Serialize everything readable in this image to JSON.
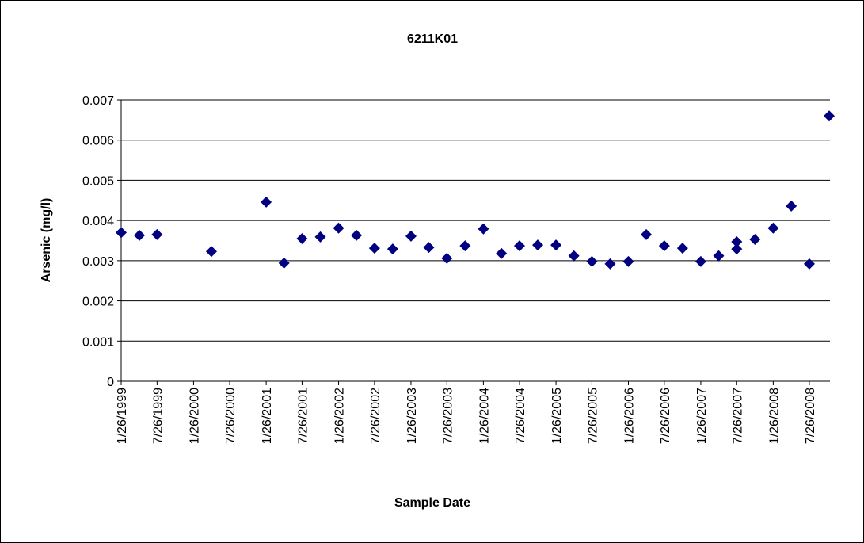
{
  "chart_data": {
    "type": "scatter",
    "title": "6211K01",
    "x_label": "Sample Date",
    "y_label": "Arsenic (mg/l)",
    "color": "#000080",
    "grid": true,
    "xlim": [
      "1999-01-26",
      "2008-11-07"
    ],
    "xticks": [
      {
        "value": "1999-01-26",
        "label": "1/26/1999"
      },
      {
        "value": "1999-07-26",
        "label": "7/26/1999"
      },
      {
        "value": "2000-01-26",
        "label": "1/26/2000"
      },
      {
        "value": "2000-07-26",
        "label": "7/26/2000"
      },
      {
        "value": "2001-01-26",
        "label": "1/26/2001"
      },
      {
        "value": "2001-07-26",
        "label": "7/26/2001"
      },
      {
        "value": "2002-01-26",
        "label": "1/26/2002"
      },
      {
        "value": "2002-07-26",
        "label": "7/26/2002"
      },
      {
        "value": "2003-01-26",
        "label": "1/26/2003"
      },
      {
        "value": "2003-07-26",
        "label": "7/26/2003"
      },
      {
        "value": "2004-01-26",
        "label": "1/26/2004"
      },
      {
        "value": "2004-07-26",
        "label": "7/26/2004"
      },
      {
        "value": "2005-01-26",
        "label": "1/26/2005"
      },
      {
        "value": "2005-07-26",
        "label": "7/26/2005"
      },
      {
        "value": "2006-01-26",
        "label": "1/26/2006"
      },
      {
        "value": "2006-07-26",
        "label": "7/26/2006"
      },
      {
        "value": "2007-01-26",
        "label": "1/26/2007"
      },
      {
        "value": "2007-07-26",
        "label": "7/26/2007"
      },
      {
        "value": "2008-01-26",
        "label": "1/26/2008"
      },
      {
        "value": "2008-07-26",
        "label": "7/26/2008"
      }
    ],
    "ylim": [
      0,
      0.007
    ],
    "yticks": [
      0,
      0.001,
      0.002,
      0.003,
      0.004,
      0.005,
      0.006,
      0.007
    ],
    "x": [
      "1999-01-26",
      "1999-04-28",
      "1999-07-26",
      "2000-04-25",
      "2001-01-26",
      "2001-04-26",
      "2001-07-26",
      "2001-10-26",
      "2002-01-26",
      "2002-04-26",
      "2002-07-26",
      "2002-10-26",
      "2003-01-26",
      "2003-04-26",
      "2003-07-26",
      "2003-10-26",
      "2004-01-26",
      "2004-04-26",
      "2004-07-26",
      "2004-10-26",
      "2005-01-26",
      "2005-04-26",
      "2005-07-26",
      "2005-10-26",
      "2006-01-26",
      "2006-04-26",
      "2006-07-26",
      "2006-10-26",
      "2007-01-26",
      "2007-04-26",
      "2007-07-26",
      "2007-07-26",
      "2007-10-26",
      "2008-01-26",
      "2008-04-26",
      "2008-07-26",
      "2008-11-03"
    ],
    "values": [
      0.0037,
      0.00363,
      0.00365,
      0.00323,
      0.00446,
      0.00294,
      0.00355,
      0.00359,
      0.00381,
      0.00363,
      0.00331,
      0.00329,
      0.00361,
      0.00333,
      0.00306,
      0.00337,
      0.00379,
      0.00318,
      0.00337,
      0.00339,
      0.00339,
      0.00312,
      0.00298,
      0.00292,
      0.00298,
      0.00365,
      0.00337,
      0.00331,
      0.00298,
      0.00312,
      0.00347,
      0.00329,
      0.00353,
      0.00381,
      0.00436,
      0.00292,
      0.0066
    ]
  }
}
